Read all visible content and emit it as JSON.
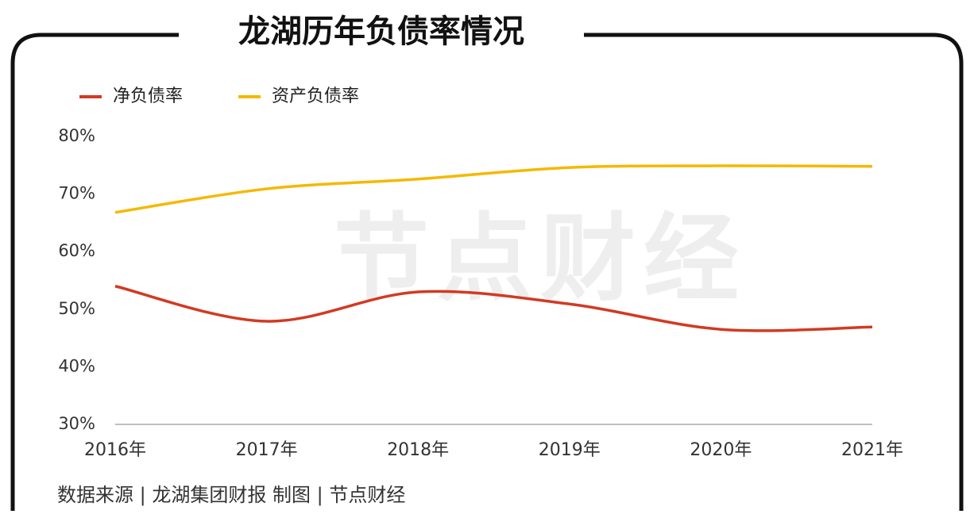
{
  "chart_data": {
    "type": "line",
    "title": "龙湖历年负债率情况",
    "categories": [
      "2016年",
      "2017年",
      "2018年",
      "2019年",
      "2020年",
      "2021年"
    ],
    "series": [
      {
        "name": "净负债率",
        "color": "#d23a22",
        "values": [
          54.0,
          47.9,
          53.0,
          50.9,
          46.5,
          46.9
        ]
      },
      {
        "name": "资产负债率",
        "color": "#f5b800",
        "values": [
          66.8,
          70.9,
          72.6,
          74.6,
          74.9,
          74.8
        ]
      }
    ],
    "ylim": [
      30,
      80
    ],
    "yticks": [
      {
        "value": 30,
        "label": "30%"
      },
      {
        "value": 40,
        "label": "40%"
      },
      {
        "value": 50,
        "label": "50%"
      },
      {
        "value": 60,
        "label": "60%"
      },
      {
        "value": 70,
        "label": "70%"
      },
      {
        "value": 80,
        "label": "80%"
      }
    ],
    "legend": "top-left",
    "watermark": "节点财经",
    "source": "数据来源 | 龙湖集团财报    制图 | 节点财经"
  }
}
